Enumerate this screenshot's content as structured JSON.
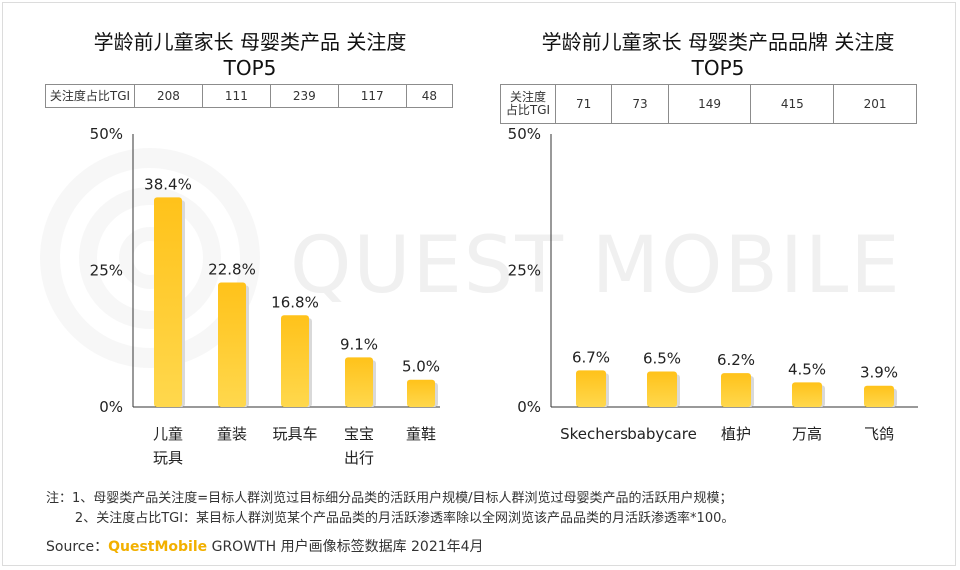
{
  "watermark": "QUEST MOBILE",
  "colors": {
    "bar_top": "#ffc21a",
    "bar_bottom": "#ffd84d",
    "axis": "#333333",
    "brand": "#f2b000"
  },
  "charts": {
    "left": {
      "title_line1": "学龄前儿童家长 母婴类产品 关注度",
      "title_line2": "TOP5",
      "tgi_label": "关注度占比TGI",
      "tgi_values": [
        "208",
        "111",
        "239",
        "117",
        "48"
      ]
    },
    "right": {
      "title_line1": "学龄前儿童家长 母婴类产品品牌 关注度",
      "title_line2": "TOP5",
      "tgi_label_line1": "关注度",
      "tgi_label_line2": "占比TGI",
      "tgi_values": [
        "71",
        "73",
        "149",
        "415",
        "201"
      ]
    }
  },
  "chart_data": [
    {
      "type": "bar",
      "title": "学龄前儿童家长 母婴类产品 关注度 TOP5",
      "categories": [
        "儿童\n玩具",
        "童装",
        "玩具车",
        "宝宝\n出行",
        "童鞋"
      ],
      "values": [
        38.4,
        22.8,
        16.8,
        9.1,
        5.0
      ],
      "value_labels": [
        "38.4%",
        "22.8%",
        "16.8%",
        "9.1%",
        "5.0%"
      ],
      "yticks": [
        "0%",
        "25%",
        "50%"
      ],
      "ylim": [
        0,
        50
      ]
    },
    {
      "type": "bar",
      "title": "学龄前儿童家长 母婴类产品品牌 关注度 TOP5",
      "categories": [
        "Skechers",
        "babycare",
        "植护",
        "万高",
        "飞鸽"
      ],
      "values": [
        6.7,
        6.5,
        6.2,
        4.5,
        3.9
      ],
      "value_labels": [
        "6.7%",
        "6.5%",
        "6.2%",
        "4.5%",
        "3.9%"
      ],
      "yticks": [
        "0%",
        "25%",
        "50%"
      ],
      "ylim": [
        0,
        50
      ]
    }
  ],
  "notes": {
    "line1": "注：1、母婴类产品关注度=目标人群浏览过目标细分品类的活跃用户规模/目标人群浏览过母婴类产品的活跃用户规模；",
    "line2": "       2、关注度占比TGI：某目标人群浏览某个产品品类的月活跃渗透率除以全网浏览该产品品类的月活跃渗透率*100。"
  },
  "source": {
    "prefix": "Source：",
    "brand": "QuestMobile",
    "rest": " GROWTH 用户画像标签数据库 2021年4月"
  }
}
